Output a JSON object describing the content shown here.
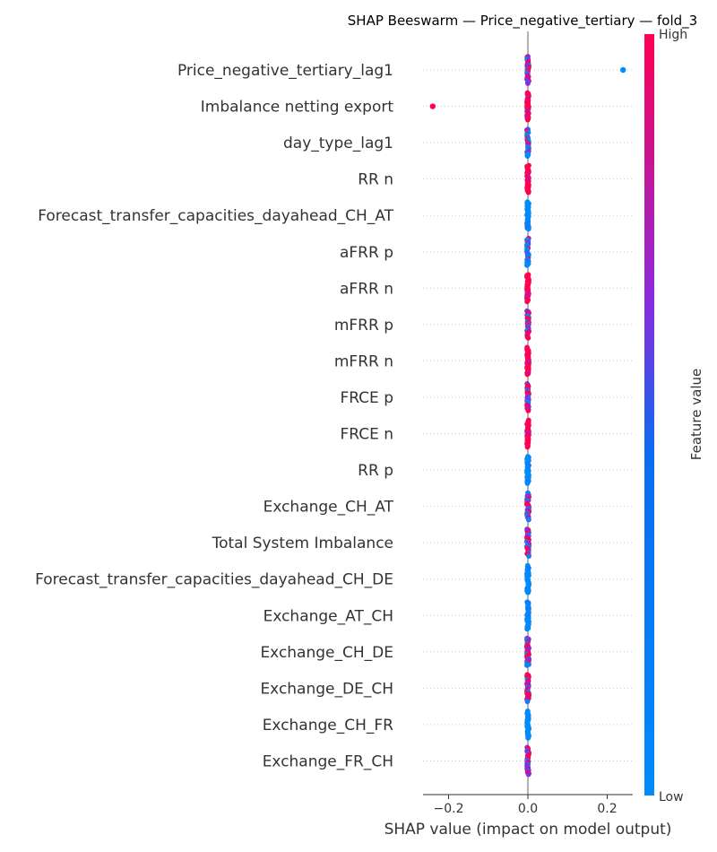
{
  "chart_data": {
    "type": "scatter",
    "subtype": "shap-beeswarm",
    "title": "SHAP Beeswarm — Price_negative_tertiary — fold_3",
    "xlabel": "SHAP value (impact on model output)",
    "xlim": [
      -0.265,
      0.265
    ],
    "xticks": [
      -0.2,
      0.0,
      0.2
    ],
    "xtick_labels": [
      "−0.2",
      "0.0",
      "0.2"
    ],
    "grid": false,
    "colorbar": {
      "label": "Feature value",
      "high_label": "High",
      "low_label": "Low",
      "colors": [
        "#008bfb",
        "#8a2ade",
        "#ff0052"
      ]
    },
    "features": [
      {
        "name": "Price_negative_tertiary_lag1",
        "mix": "mixed",
        "outliers": [
          {
            "x": 0.24,
            "v": 0.0
          }
        ]
      },
      {
        "name": "Imbalance netting export",
        "mix": "high",
        "outliers": [
          {
            "x": -0.24,
            "v": 1.0
          }
        ]
      },
      {
        "name": "day_type_lag1",
        "mix": "mostly-low",
        "outliers": []
      },
      {
        "name": "RR n",
        "mix": "high",
        "outliers": []
      },
      {
        "name": "Forecast_transfer_capacities_dayahead_CH_AT",
        "mix": "low",
        "outliers": []
      },
      {
        "name": "aFRR p",
        "mix": "mostly-low",
        "outliers": []
      },
      {
        "name": "aFRR n",
        "mix": "high",
        "outliers": []
      },
      {
        "name": "mFRR p",
        "mix": "mixed",
        "outliers": []
      },
      {
        "name": "mFRR n",
        "mix": "high",
        "outliers": []
      },
      {
        "name": "FRCE p",
        "mix": "mixed",
        "outliers": []
      },
      {
        "name": "FRCE n",
        "mix": "high",
        "outliers": []
      },
      {
        "name": "RR p",
        "mix": "low",
        "outliers": []
      },
      {
        "name": "Exchange_CH_AT",
        "mix": "mixed",
        "outliers": []
      },
      {
        "name": "Total System Imbalance",
        "mix": "mixed",
        "outliers": []
      },
      {
        "name": "Forecast_transfer_capacities_dayahead_CH_DE",
        "mix": "low",
        "outliers": []
      },
      {
        "name": "Exchange_AT_CH",
        "mix": "low",
        "outliers": []
      },
      {
        "name": "Exchange_CH_DE",
        "mix": "mixed",
        "outliers": []
      },
      {
        "name": "Exchange_DE_CH",
        "mix": "mixed",
        "outliers": []
      },
      {
        "name": "Exchange_CH_FR",
        "mix": "low",
        "outliers": []
      },
      {
        "name": "Exchange_FR_CH",
        "mix": "mixed",
        "outliers": []
      }
    ]
  }
}
